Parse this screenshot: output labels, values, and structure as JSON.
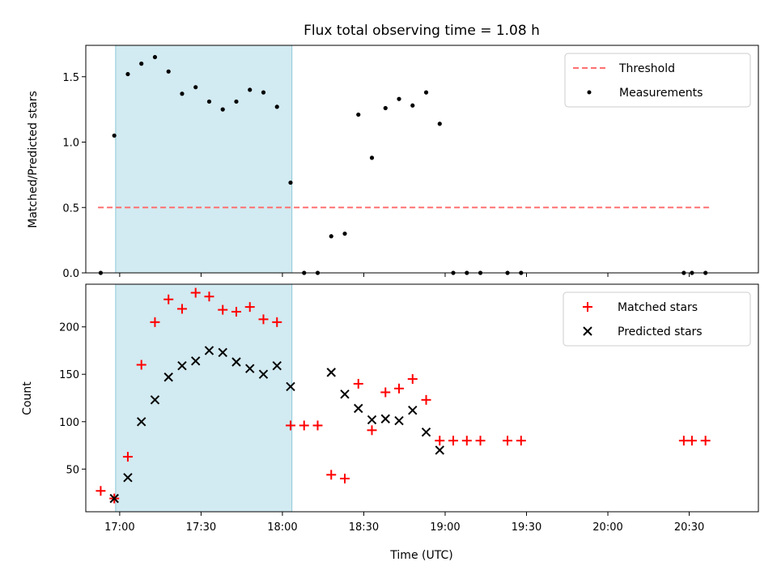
{
  "figure": {
    "title": "Flux total observing time = 1.08 h"
  },
  "colors": {
    "threshold": "#ff7070",
    "measurement": "#000000",
    "matched": "#ff0000",
    "predicted": "#000000",
    "shade_fill": "#add8e6",
    "shade_edge": "#8cc8d8"
  },
  "chart_data": [
    {
      "type": "scatter",
      "panel": "top",
      "ylabel": "Matched/Predicted stars",
      "xlabel": "",
      "xlim_minutes": [
        1007.5,
        1255.5
      ],
      "ylim": [
        0,
        1.74
      ],
      "yticks": [
        {
          "value": 0.0,
          "label": "0.0"
        },
        {
          "value": 0.5,
          "label": "0.5"
        },
        {
          "value": 1.0,
          "label": "1.0"
        },
        {
          "value": 1.5,
          "label": "1.5"
        }
      ],
      "shaded_region_minutes": [
        1018.5,
        1083.5
      ],
      "threshold": {
        "name": "Threshold",
        "value": 0.5,
        "x_range_minutes": [
          1012,
          1238
        ]
      },
      "series": [
        {
          "name": "Measurements",
          "marker": "dot",
          "points": [
            [
              1013,
              0.0
            ],
            [
              1018,
              1.05
            ],
            [
              1023,
              1.52
            ],
            [
              1028,
              1.6
            ],
            [
              1033,
              1.65
            ],
            [
              1038,
              1.54
            ],
            [
              1043,
              1.37
            ],
            [
              1048,
              1.42
            ],
            [
              1053,
              1.31
            ],
            [
              1058,
              1.25
            ],
            [
              1063,
              1.31
            ],
            [
              1068,
              1.4
            ],
            [
              1073,
              1.38
            ],
            [
              1078,
              1.27
            ],
            [
              1083,
              0.69
            ],
            [
              1088,
              0.0
            ],
            [
              1093,
              0.0
            ],
            [
              1098,
              0.28
            ],
            [
              1103,
              0.3
            ],
            [
              1108,
              1.21
            ],
            [
              1113,
              0.88
            ],
            [
              1118,
              1.26
            ],
            [
              1123,
              1.33
            ],
            [
              1128,
              1.28
            ],
            [
              1133,
              1.38
            ],
            [
              1138,
              1.14
            ],
            [
              1143,
              0.0
            ],
            [
              1148,
              0.0
            ],
            [
              1153,
              0.0
            ],
            [
              1163,
              0.0
            ],
            [
              1168,
              0.0
            ],
            [
              1228,
              0.0
            ],
            [
              1231,
              0.0
            ],
            [
              1236,
              0.0
            ]
          ]
        }
      ],
      "legend": [
        "Threshold",
        "Measurements"
      ],
      "legend_position": "top-right"
    },
    {
      "type": "scatter",
      "panel": "bottom",
      "ylabel": "Count",
      "xlabel": "Time (UTC)",
      "xlim_minutes": [
        1007.5,
        1255.5
      ],
      "ylim": [
        5,
        245
      ],
      "yticks": [
        {
          "value": 50,
          "label": "50"
        },
        {
          "value": 100,
          "label": "100"
        },
        {
          "value": 150,
          "label": "150"
        },
        {
          "value": 200,
          "label": "200"
        }
      ],
      "xticks": [
        {
          "minutes": 1020,
          "label": "17:00"
        },
        {
          "minutes": 1050,
          "label": "17:30"
        },
        {
          "minutes": 1080,
          "label": "18:00"
        },
        {
          "minutes": 1110,
          "label": "18:30"
        },
        {
          "minutes": 1140,
          "label": "19:00"
        },
        {
          "minutes": 1170,
          "label": "19:30"
        },
        {
          "minutes": 1200,
          "label": "20:00"
        },
        {
          "minutes": 1230,
          "label": "20:30"
        }
      ],
      "shaded_region_minutes": [
        1018.5,
        1083.5
      ],
      "series": [
        {
          "name": "Matched stars",
          "marker": "plus",
          "points": [
            [
              1013,
              27
            ],
            [
              1018,
              19
            ],
            [
              1023,
              63
            ],
            [
              1028,
              160
            ],
            [
              1033,
              205
            ],
            [
              1038,
              229
            ],
            [
              1043,
              219
            ],
            [
              1048,
              236
            ],
            [
              1053,
              232
            ],
            [
              1058,
              218
            ],
            [
              1063,
              216
            ],
            [
              1068,
              221
            ],
            [
              1073,
              208
            ],
            [
              1078,
              205
            ],
            [
              1083,
              96
            ],
            [
              1088,
              96
            ],
            [
              1093,
              96
            ],
            [
              1098,
              44
            ],
            [
              1103,
              40
            ],
            [
              1108,
              140
            ],
            [
              1113,
              91
            ],
            [
              1118,
              131
            ],
            [
              1123,
              135
            ],
            [
              1128,
              145
            ],
            [
              1133,
              123
            ],
            [
              1138,
              80
            ],
            [
              1143,
              80
            ],
            [
              1148,
              80
            ],
            [
              1153,
              80
            ],
            [
              1163,
              80
            ],
            [
              1168,
              80
            ],
            [
              1228,
              80
            ],
            [
              1231,
              80
            ],
            [
              1236,
              80
            ]
          ]
        },
        {
          "name": "Predicted stars",
          "marker": "x",
          "points": [
            [
              1018,
              19
            ],
            [
              1023,
              41
            ],
            [
              1028,
              100
            ],
            [
              1033,
              123
            ],
            [
              1038,
              147
            ],
            [
              1043,
              159
            ],
            [
              1048,
              164
            ],
            [
              1053,
              175
            ],
            [
              1058,
              173
            ],
            [
              1063,
              163
            ],
            [
              1068,
              156
            ],
            [
              1073,
              150
            ],
            [
              1078,
              159
            ],
            [
              1083,
              137
            ],
            [
              1098,
              152
            ],
            [
              1103,
              129
            ],
            [
              1108,
              114
            ],
            [
              1113,
              102
            ],
            [
              1118,
              103
            ],
            [
              1123,
              101
            ],
            [
              1128,
              112
            ],
            [
              1133,
              89
            ],
            [
              1138,
              70
            ]
          ]
        }
      ],
      "legend": [
        "Matched stars",
        "Predicted stars"
      ],
      "legend_position": "top-right"
    }
  ]
}
